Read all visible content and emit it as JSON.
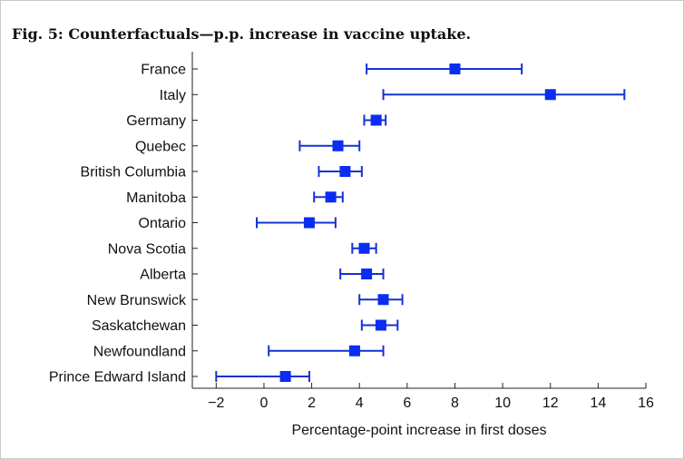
{
  "figure": {
    "title": "Fig. 5: Counterfactuals—p.p. increase in vaccine uptake."
  },
  "colors": {
    "series": "#1432d2",
    "marker": "#0b2cf2",
    "axis": "#222222",
    "text": "#111111"
  },
  "chart_data": {
    "type": "scatter",
    "title": "Fig. 5: Counterfactuals—p.p. increase in vaccine uptake.",
    "xlabel": "Percentage-point increase in first doses",
    "ylabel": "",
    "xlim": [
      -3,
      16
    ],
    "xticks": [
      -2,
      0,
      2,
      4,
      6,
      8,
      10,
      12,
      14,
      16
    ],
    "xtick_labels": [
      "−2",
      "0",
      "2",
      "4",
      "6",
      "8",
      "10",
      "12",
      "14",
      "16"
    ],
    "grid": false,
    "legend": "none",
    "categories": [
      "France",
      "Italy",
      "Germany",
      "Quebec",
      "British Columbia",
      "Manitoba",
      "Ontario",
      "Nova Scotia",
      "Alberta",
      "New Brunswick",
      "Saskatchewan",
      "Newfoundland",
      "Prince Edward Island"
    ],
    "series": [
      {
        "estimate": [
          8.0,
          12.0,
          4.7,
          3.1,
          3.4,
          2.8,
          1.9,
          4.2,
          4.3,
          5.0,
          4.9,
          3.8,
          0.9
        ],
        "ci_low": [
          4.3,
          5.0,
          4.2,
          1.5,
          2.3,
          2.1,
          -0.3,
          3.7,
          3.2,
          4.0,
          4.1,
          0.2,
          -2.0
        ],
        "ci_high": [
          10.8,
          15.1,
          5.1,
          4.0,
          4.1,
          3.3,
          3.0,
          4.7,
          5.0,
          5.8,
          5.6,
          5.0,
          1.9
        ]
      }
    ]
  }
}
